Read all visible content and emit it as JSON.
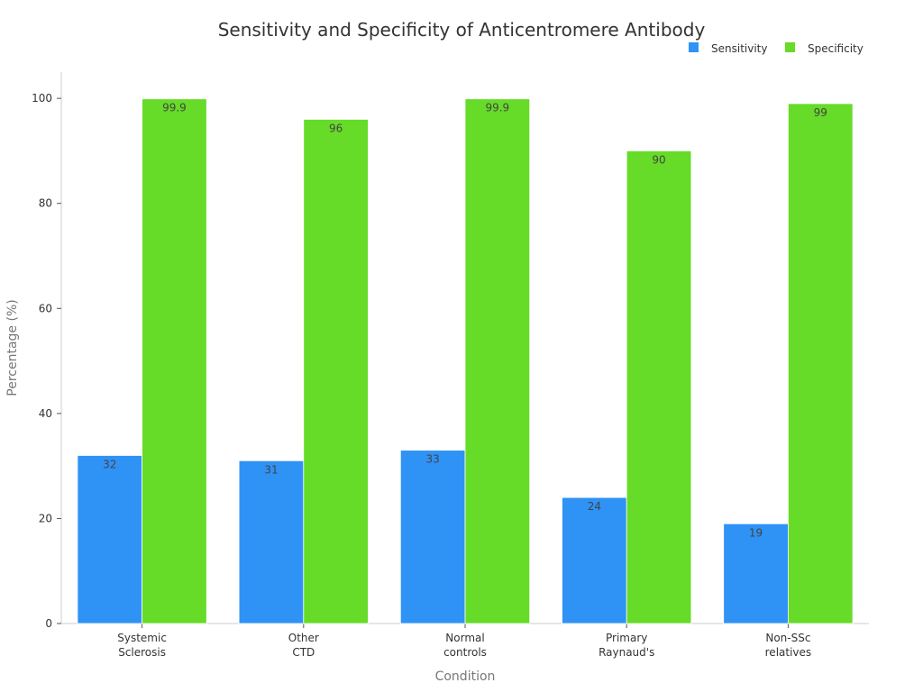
{
  "chart_data": {
    "type": "bar",
    "title": "Sensitivity and Specificity of Anticentromere Antibody",
    "xlabel": "Condition",
    "ylabel": "Percentage (%)",
    "ylim": [
      0,
      105
    ],
    "yticks": [
      0,
      20,
      40,
      60,
      80,
      100
    ],
    "categories": [
      [
        "Systemic",
        "Sclerosis"
      ],
      [
        "Other",
        "CTD"
      ],
      [
        "Normal",
        "controls"
      ],
      [
        "Primary",
        "Raynaud's"
      ],
      [
        "Non-SSc",
        "relatives"
      ]
    ],
    "series": [
      {
        "name": "Sensitivity",
        "color": "#2f92f5",
        "values": [
          32,
          31,
          33,
          24,
          19
        ],
        "labels": [
          "32",
          "31",
          "33",
          "24",
          "19"
        ]
      },
      {
        "name": "Specificity",
        "color": "#66db28",
        "values": [
          99.9,
          96,
          99.9,
          90,
          99
        ],
        "labels": [
          "99.9",
          "96",
          "99.9",
          "90",
          "99"
        ]
      }
    ],
    "grid": false,
    "legend": "top-right"
  }
}
